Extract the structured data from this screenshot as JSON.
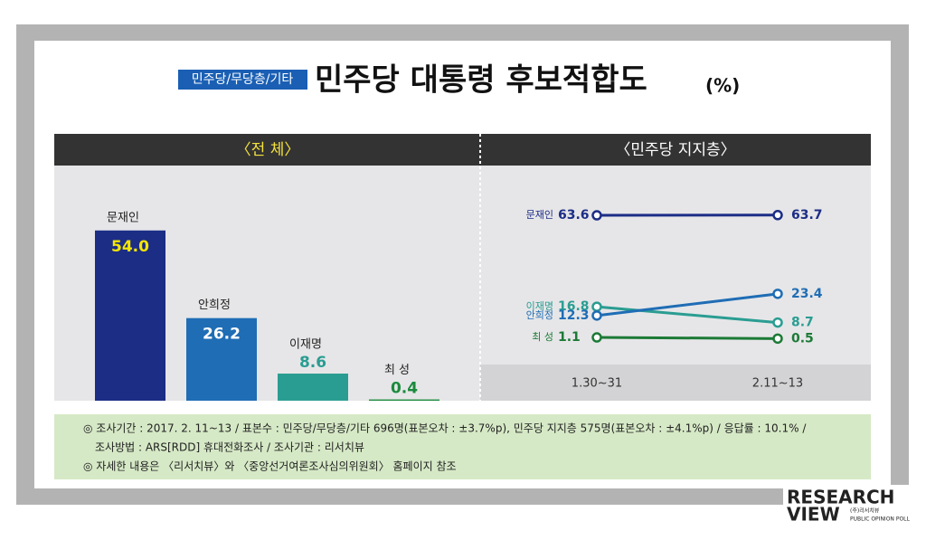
{
  "tag": "민주당/무당층/기타",
  "title": "민주당 대통령 후보적합도",
  "unit": "(%)",
  "chart_data": [
    {
      "type": "bar",
      "title": "〈전  체〉",
      "categories": [
        "문재인",
        "안희정",
        "이재명",
        "최 성"
      ],
      "values": [
        54.0,
        26.2,
        8.6,
        0.4
      ],
      "value_labels": [
        "54.0",
        "26.2",
        "8.6",
        "0.4"
      ],
      "colors": [
        "#1c2d86",
        "#1f6db5",
        "#2a9d92",
        "#1c8a3c"
      ],
      "ylim": [
        0,
        70
      ]
    },
    {
      "type": "line",
      "title": "〈민주당 지지층〉",
      "x": [
        "1.30~31",
        "2.11~13"
      ],
      "series": [
        {
          "name": "문재인",
          "color": "#1c2d86",
          "values": [
            63.6,
            63.7
          ]
        },
        {
          "name": "이재명",
          "color": "#2a9d92",
          "values": [
            16.8,
            8.7
          ]
        },
        {
          "name": "안희정",
          "color": "#1f6db5",
          "values": [
            12.3,
            23.4
          ]
        },
        {
          "name": "최 성",
          "color": "#1c7a36",
          "values": [
            1.1,
            0.5
          ]
        }
      ],
      "ylim": [
        0,
        70
      ]
    }
  ],
  "notes": [
    "◎ 조사기간 : 2017. 2. 11~13  /  표본수 : 민주당/무당층/기타 696명(표본오차 : ±3.7%p), 민주당 지지층 575명(표본오차 : ±4.1%p) / 응답률 :  10.1% /",
    "조사방법 : ARS[RDD] 휴대전화조사  /  조사기관 : 리서치뷰",
    "◎ 자세한 내용은 〈리서치뷰〉와 〈중앙선거여론조사심의위원회〉 홈페이지 참조"
  ],
  "logo": {
    "line1": "RESEARCH",
    "line2": "VIEW",
    "company": "(주)리서치뷰",
    "tagline": "PUBLIC OPINION POLL"
  }
}
